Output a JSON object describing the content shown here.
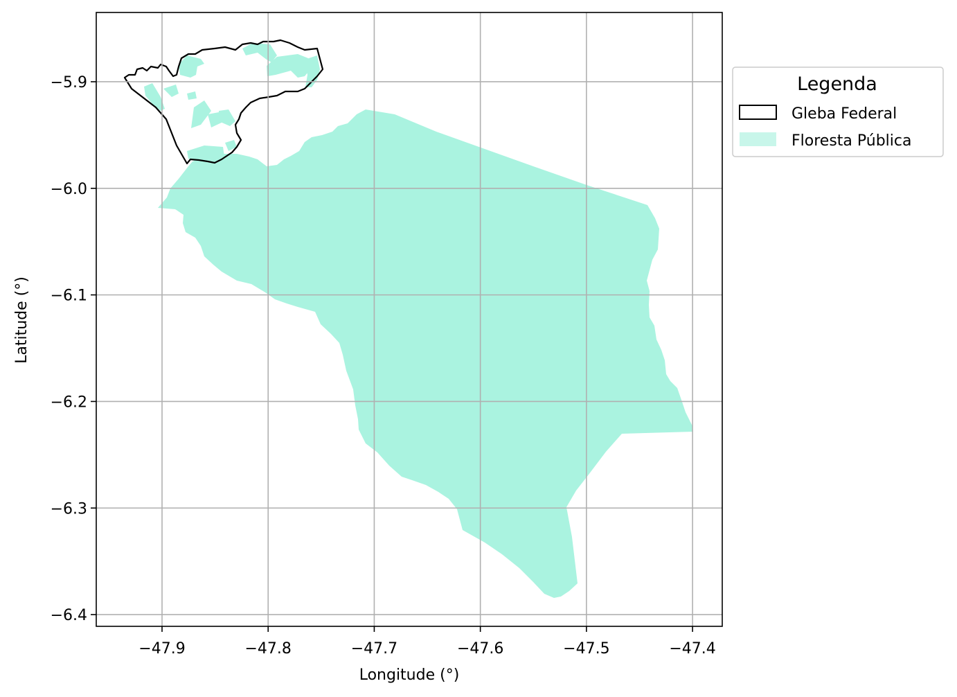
{
  "map": {
    "xlabel": "Longitude (°)",
    "ylabel": "Latitude (°)",
    "xlim": [
      -47.962,
      -47.372
    ],
    "ylim": [
      -6.411,
      -5.835
    ],
    "x_ticks": [
      -47.9,
      -47.8,
      -47.7,
      -47.6,
      -47.5,
      -47.4
    ],
    "x_tick_labels": [
      "−47.9",
      "−47.8",
      "−47.7",
      "−47.6",
      "−47.5",
      "−47.4"
    ],
    "y_ticks": [
      -5.9,
      -6.0,
      -6.1,
      -6.2,
      -6.3,
      -6.4
    ],
    "y_tick_labels": [
      "−5.9",
      "−6.0",
      "−6.1",
      "−6.2",
      "−6.3",
      "−6.4"
    ],
    "grid": true,
    "colors": {
      "floresta": "#aaf3e0",
      "gleba": "#000000",
      "grid": "#b0b0b0"
    }
  },
  "legend": {
    "title": "Legenda",
    "items": [
      "Gleba Federal",
      "Floresta Pública"
    ],
    "placement": "outside-right-top"
  }
}
